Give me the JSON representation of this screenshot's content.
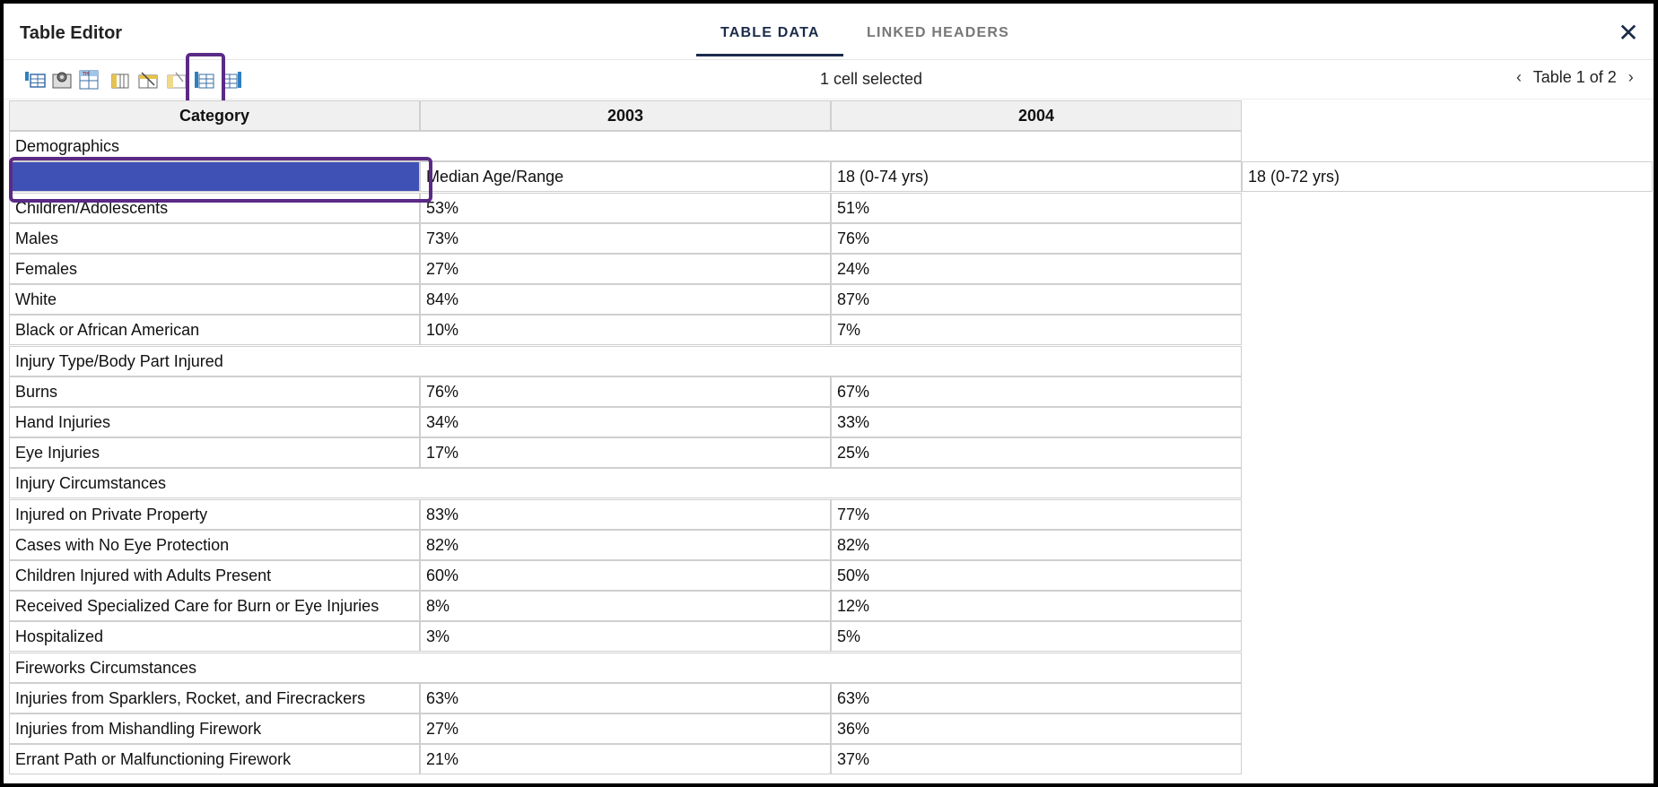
{
  "header": {
    "title": "Table Editor",
    "tabs": [
      {
        "label": "TABLE DATA",
        "active": true
      },
      {
        "label": "LINKED HEADERS",
        "active": false
      }
    ],
    "close_icon": "close-icon"
  },
  "toolbar": {
    "tools": [
      "insert-row-icon",
      "table-settings-icon",
      "header-format-icon",
      "delete-column-icon",
      "merge-cells-icon",
      "split-cells-icon",
      "insert-column-left-icon",
      "insert-column-right-icon"
    ],
    "status": "1 cell selected",
    "pager_label": "Table 1 of 2"
  },
  "table": {
    "headers": [
      "Category",
      "2003",
      "2004"
    ],
    "rows": [
      {
        "type": "section",
        "label": "Demographics"
      },
      {
        "type": "shifted",
        "cells": [
          "",
          "Median Age/Range",
          "18 (0-74 yrs)",
          "18 (0-72 yrs)"
        ]
      },
      {
        "type": "data",
        "cells": [
          "Children/Adolescents",
          "53%",
          "51%"
        ]
      },
      {
        "type": "data",
        "cells": [
          "Males",
          "73%",
          "76%"
        ]
      },
      {
        "type": "data",
        "cells": [
          "Females",
          "27%",
          "24%"
        ]
      },
      {
        "type": "data",
        "cells": [
          "White",
          "84%",
          "87%"
        ]
      },
      {
        "type": "data",
        "cells": [
          "Black or African American",
          "10%",
          "7%"
        ]
      },
      {
        "type": "section",
        "label": "Injury Type/Body Part Injured"
      },
      {
        "type": "data",
        "cells": [
          "Burns",
          "76%",
          "67%"
        ]
      },
      {
        "type": "data",
        "cells": [
          "Hand Injuries",
          "34%",
          "33%"
        ]
      },
      {
        "type": "data",
        "cells": [
          "Eye Injuries",
          "17%",
          "25%"
        ]
      },
      {
        "type": "section",
        "label": "Injury Circumstances"
      },
      {
        "type": "data",
        "cells": [
          "Injured on Private Property",
          "83%",
          "77%"
        ]
      },
      {
        "type": "data",
        "cells": [
          "Cases with No Eye Protection",
          "82%",
          "82%"
        ]
      },
      {
        "type": "data",
        "cells": [
          "Children Injured with Adults Present",
          "60%",
          "50%"
        ]
      },
      {
        "type": "data",
        "cells": [
          "Received Specialized Care for Burn or Eye Injuries",
          "8%",
          "12%"
        ]
      },
      {
        "type": "data",
        "cells": [
          "Hospitalized",
          "3%",
          "5%"
        ]
      },
      {
        "type": "section",
        "label": "Fireworks Circumstances"
      },
      {
        "type": "data",
        "cells": [
          "Injuries from Sparklers, Rocket, and Firecrackers",
          "63%",
          "63%"
        ]
      },
      {
        "type": "data",
        "cells": [
          "Injuries from Mishandling Firework",
          "27%",
          "36%"
        ]
      },
      {
        "type": "data",
        "cells": [
          "Errant Path or Malfunctioning Firework",
          "21%",
          "37%"
        ]
      }
    ]
  },
  "colors": {
    "accent": "#1b2b4b",
    "highlight": "#5b2a86",
    "selected_cell": "#3f51b5"
  }
}
